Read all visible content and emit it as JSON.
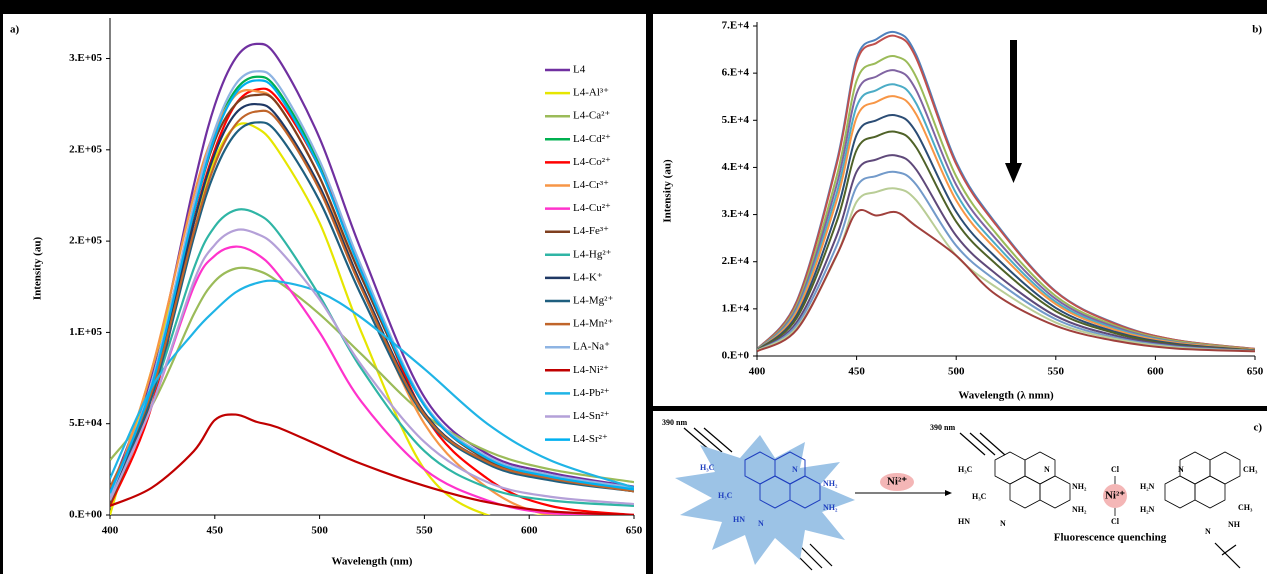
{
  "chart_data": [
    {
      "type": "line",
      "panel_label": "a)",
      "x_label": "Wavelength (nm)",
      "y_label": "Intensity (au)",
      "x": [
        400,
        420,
        440,
        450,
        460,
        470,
        480,
        500,
        520,
        550,
        580,
        610,
        650
      ],
      "xlim": [
        400,
        650
      ],
      "xticks": [
        400,
        450,
        500,
        550,
        600,
        650
      ],
      "ylim": [
        0,
        270000
      ],
      "yticks": [
        {
          "value": 0,
          "label": "0.E+00"
        },
        {
          "value": 50000,
          "label": "5.E+04"
        },
        {
          "value": 100000,
          "label": "1.E+05"
        },
        {
          "value": 150000,
          "label": "2.E+05"
        },
        {
          "value": 200000,
          "label": "2.E+05"
        },
        {
          "value": 250000,
          "label": "3.E+05"
        }
      ],
      "legend": "right",
      "series": [
        {
          "name": "L4",
          "color": "#7030a0",
          "values": [
            12900,
            77400,
            180600,
            224500,
            250300,
            258000,
            250300,
            206400,
            144500,
            64500,
            33500,
            23200,
            15500
          ]
        },
        {
          "name": "L4-Al³⁺",
          "color": "#e6e600",
          "values": [
            0,
            80000,
            160000,
            195000,
            213000,
            212000,
            200000,
            160000,
            100000,
            25000,
            0,
            0,
            0
          ]
        },
        {
          "name": "L4-Ca²⁺",
          "color": "#9bbb59",
          "values": [
            30000,
            60000,
            110000,
            128000,
            135000,
            134000,
            128000,
            110000,
            88000,
            55000,
            35000,
            25000,
            18000
          ]
        },
        {
          "name": "L4-Cd²⁺",
          "color": "#00b050",
          "values": [
            10000,
            72000,
            168000,
            208800,
            232800,
            240000,
            232800,
            192000,
            134400,
            60000,
            31200,
            21600,
            14400
          ]
        },
        {
          "name": "L4-Co²⁺",
          "color": "#ff0000",
          "values": [
            5000,
            60000,
            160000,
            200000,
            225000,
            233000,
            228000,
            190000,
            135000,
            55000,
            20000,
            5000,
            0
          ]
        },
        {
          "name": "L4-Cr³⁺",
          "color": "#f79646",
          "values": [
            8000,
            80000,
            175000,
            210000,
            230000,
            232000,
            225000,
            185000,
            125000,
            50000,
            15000,
            0,
            0
          ]
        },
        {
          "name": "L4-Cu²⁺",
          "color": "#ff33cc",
          "values": [
            8000,
            60000,
            125000,
            142000,
            147000,
            143000,
            132000,
            100000,
            62000,
            25000,
            8000,
            1000,
            0
          ]
        },
        {
          "name": "L4-Fe³⁺",
          "color": "#7f3f1f",
          "values": [
            6000,
            65000,
            165000,
            205000,
            225000,
            230000,
            225000,
            185000,
            130000,
            60000,
            30000,
            20000,
            13000
          ]
        },
        {
          "name": "L4-Hg²⁺",
          "color": "#2fb5a5",
          "values": [
            10000,
            65000,
            135000,
            158000,
            167000,
            165000,
            155000,
            120000,
            80000,
            35000,
            15000,
            8000,
            5000
          ]
        },
        {
          "name": "L4-K⁺",
          "color": "#1f3864",
          "values": [
            10000,
            68000,
            160000,
            198000,
            220000,
            225000,
            218000,
            180000,
            126000,
            56000,
            29000,
            20000,
            13000
          ]
        },
        {
          "name": "L4-Mg²⁺",
          "color": "#1f5f7f",
          "values": [
            12000,
            65000,
            152000,
            188000,
            209000,
            215000,
            209000,
            172000,
            120000,
            54000,
            28000,
            19000,
            13000
          ]
        },
        {
          "name": "L4-Mn²⁺",
          "color": "#c0652a",
          "values": [
            15000,
            68000,
            155000,
            192000,
            214000,
            221000,
            216000,
            178000,
            124000,
            55000,
            29000,
            20000,
            13000
          ]
        },
        {
          "name": "LA-Na⁺",
          "color": "#8eb4e3",
          "values": [
            10000,
            73000,
            170000,
            211000,
            236000,
            243000,
            236000,
            194000,
            136000,
            61000,
            32000,
            22000,
            15000
          ]
        },
        {
          "name": "L4-Ni²⁺",
          "color": "#c00000",
          "values": [
            5000,
            15000,
            35000,
            52000,
            55000,
            51000,
            48000,
            38000,
            28000,
            16000,
            7000,
            2000,
            0
          ]
        },
        {
          "name": "L4-Pb²⁺",
          "color": "#1fb4e6",
          "values": [
            20000,
            70000,
            100000,
            112000,
            122000,
            127000,
            128000,
            122000,
            108000,
            80000,
            50000,
            30000,
            15000
          ]
        },
        {
          "name": "L4-Sn²⁺",
          "color": "#b4a0d8",
          "values": [
            8000,
            60000,
            128000,
            148000,
            156000,
            154000,
            146000,
            118000,
            82000,
            40000,
            18000,
            10000,
            6000
          ]
        },
        {
          "name": "L4-Sr²⁺",
          "color": "#00b0f0",
          "values": [
            12000,
            71000,
            166000,
            207000,
            231000,
            238000,
            231000,
            190000,
            133000,
            60000,
            31000,
            21000,
            14000
          ]
        }
      ]
    },
    {
      "type": "line",
      "panel_label": "b)",
      "x_label": "Wavelength (λ nmn)",
      "y_label": "Intensity (au)",
      "x": [
        400,
        420,
        440,
        450,
        460,
        470,
        480,
        500,
        520,
        550,
        580,
        610,
        650
      ],
      "xlim": [
        400,
        650
      ],
      "xticks": [
        400,
        450,
        500,
        550,
        600,
        650
      ],
      "ylim": [
        0,
        70000
      ],
      "yticks": [
        {
          "value": 0,
          "label": "0.E+0"
        },
        {
          "value": 10000,
          "label": "1.E+4"
        },
        {
          "value": 20000,
          "label": "2.E+4"
        },
        {
          "value": 30000,
          "label": "3.E+4"
        },
        {
          "value": 40000,
          "label": "4.E+4"
        },
        {
          "value": 50000,
          "label": "5.E+4"
        },
        {
          "value": 60000,
          "label": "6.E+4"
        },
        {
          "value": 70000,
          "label": "7.E+4"
        }
      ],
      "series": [
        {
          "color": "#4f81bd",
          "values": [
            1400,
            11700,
            41200,
            63100,
            67200,
            68600,
            63800,
            41200,
            28100,
            13700,
            6900,
            3400,
            1500
          ]
        },
        {
          "color": "#c0504d",
          "values": [
            1400,
            11500,
            40700,
            62400,
            66400,
            67800,
            63100,
            40700,
            27800,
            13600,
            6800,
            3400,
            1500
          ]
        },
        {
          "color": "#9bbb59",
          "values": [
            1300,
            10800,
            38100,
            58400,
            62200,
            63500,
            59100,
            38100,
            26000,
            12700,
            6400,
            3200,
            1400
          ]
        },
        {
          "color": "#8064a2",
          "values": [
            1300,
            10300,
            36300,
            55700,
            59300,
            60500,
            56300,
            36300,
            24800,
            12100,
            6100,
            3000,
            1300
          ]
        },
        {
          "color": "#4bacc6",
          "values": [
            1300,
            9800,
            34500,
            52900,
            56400,
            57500,
            53500,
            34500,
            23600,
            11500,
            5800,
            2900,
            1300
          ]
        },
        {
          "color": "#f79646",
          "values": [
            1200,
            9400,
            33000,
            50600,
            53900,
            55000,
            51200,
            33000,
            22600,
            11000,
            5500,
            2800,
            1300
          ]
        },
        {
          "color": "#2c4d75",
          "values": [
            1200,
            8700,
            30600,
            46900,
            50000,
            51000,
            47400,
            30600,
            20900,
            10200,
            5100,
            2600,
            1200
          ]
        },
        {
          "color": "#4f6228",
          "values": [
            1200,
            8100,
            28500,
            43700,
            46600,
            47500,
            44200,
            28500,
            19500,
            9500,
            4800,
            2400,
            1200
          ]
        },
        {
          "color": "#5f497a",
          "values": [
            1100,
            7200,
            25500,
            39100,
            41700,
            42500,
            39500,
            25500,
            17400,
            8500,
            4300,
            2200,
            1100
          ]
        },
        {
          "color": "#729aca",
          "values": [
            1100,
            6600,
            23400,
            35900,
            38200,
            39000,
            36300,
            23400,
            16000,
            7800,
            3900,
            2000,
            1100
          ]
        },
        {
          "color": "#b9cd96",
          "values": [
            1100,
            6000,
            21300,
            32700,
            34800,
            35500,
            33000,
            21300,
            14600,
            7100,
            3600,
            1800,
            1000
          ]
        },
        {
          "color": "#a0403c",
          "values": [
            1000,
            5600,
            21400,
            30500,
            29800,
            30500,
            27500,
            21300,
            13000,
            6400,
            3200,
            1600,
            1000
          ]
        }
      ]
    }
  ],
  "diagram": {
    "label": "c)",
    "excitation": [
      "390 nm",
      "390 nm"
    ],
    "ion": "Ni²⁺",
    "caption": "Fluorescence quenching",
    "left_labels": [
      "H₃C",
      "N",
      "NH₂",
      "H₃C",
      "NH₂",
      "HN",
      "N"
    ],
    "right_labels": [
      "H₃C",
      "N",
      "NH₂",
      "H₃C",
      "NH₂",
      "HN",
      "N",
      "Cl",
      "Cl",
      "H₂N",
      "H₂N",
      "N",
      "CH₃",
      "CH₃",
      "NH",
      "N"
    ]
  }
}
